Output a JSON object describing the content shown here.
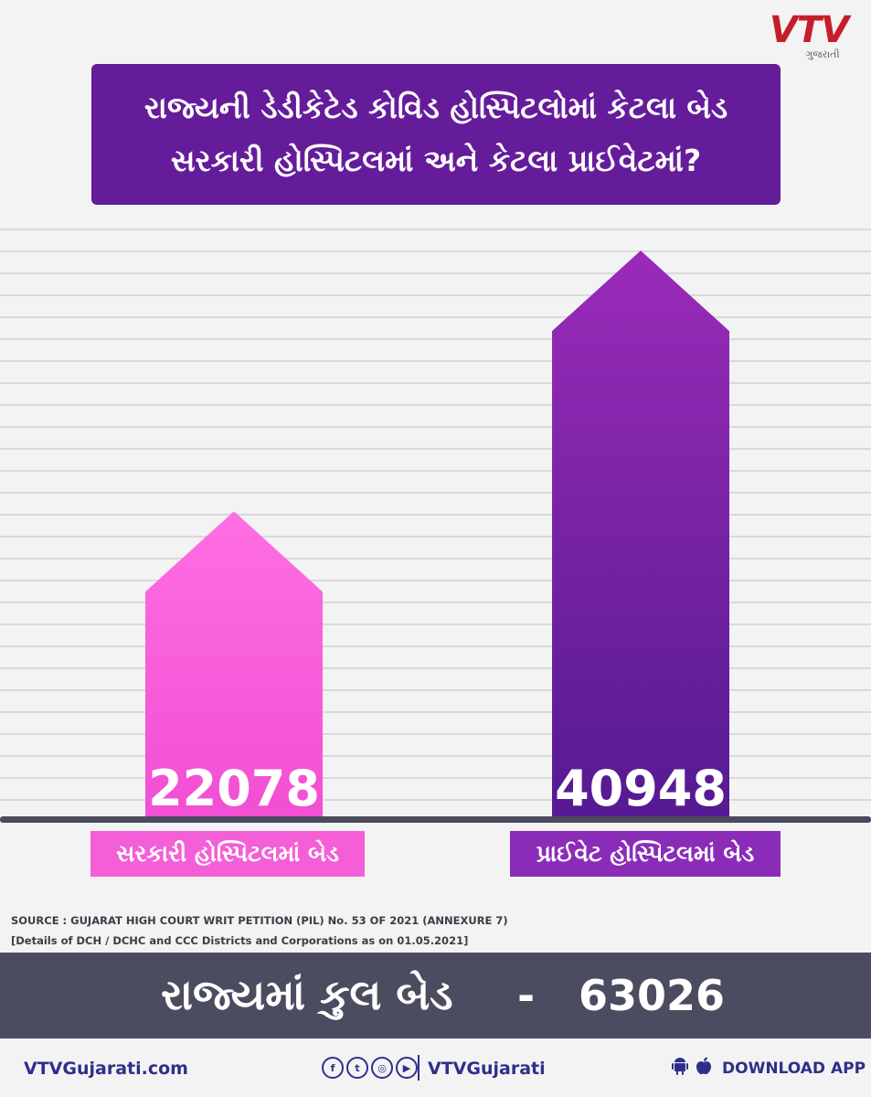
{
  "brand": {
    "logo_text": "VTV",
    "logo_sub": "ગુજરાતી",
    "red": "#c61d2a"
  },
  "title": {
    "line1": "રાજ્યની ડેડીકેટેડ કોવિડ હોસ્પિટલોમાં કેટલા બેડ",
    "line2": "સરકારી હોસ્પિટલમાં અને કેટલા પ્રાઈવેટમાં?",
    "bg": "#651c9b"
  },
  "chart_data": {
    "type": "bar",
    "categories": [
      "સરકારી હોસ્પિટલમાં બેડ",
      "પ્રાઈવેટ હોસ્પિટલમાં બેડ"
    ],
    "values": [
      22078,
      40948
    ],
    "value_labels": [
      "22078",
      "40948"
    ],
    "colors": [
      "#ff66df",
      "#7a1fa8"
    ],
    "label_bg": [
      "#f45fd7",
      "#8a2cb8"
    ],
    "grid": true,
    "ylim": [
      0,
      44000
    ]
  },
  "source": {
    "line1": "SOURCE : GUJARAT HIGH COURT WRIT PETITION (PIL) No. 53 OF 2021 (ANNEXURE 7)",
    "line2": "[Details of DCH / DCHC and CCC Districts and Corporations as on 01.05.2021]"
  },
  "total": {
    "label": "રાજ્યમાં કુલ બેડ",
    "dash": "-",
    "value": "63026"
  },
  "footer": {
    "website": "VTVGujarati.com",
    "social_icons": [
      "facebook-icon",
      "twitter-icon",
      "instagram-icon",
      "youtube-icon"
    ],
    "social_glyphs": [
      "f",
      "t",
      "◎",
      "▶"
    ],
    "handle": "VTVGujarati",
    "platform_icons": [
      "android-icon",
      "apple-icon"
    ],
    "download": "DOWNLOAD APP"
  }
}
